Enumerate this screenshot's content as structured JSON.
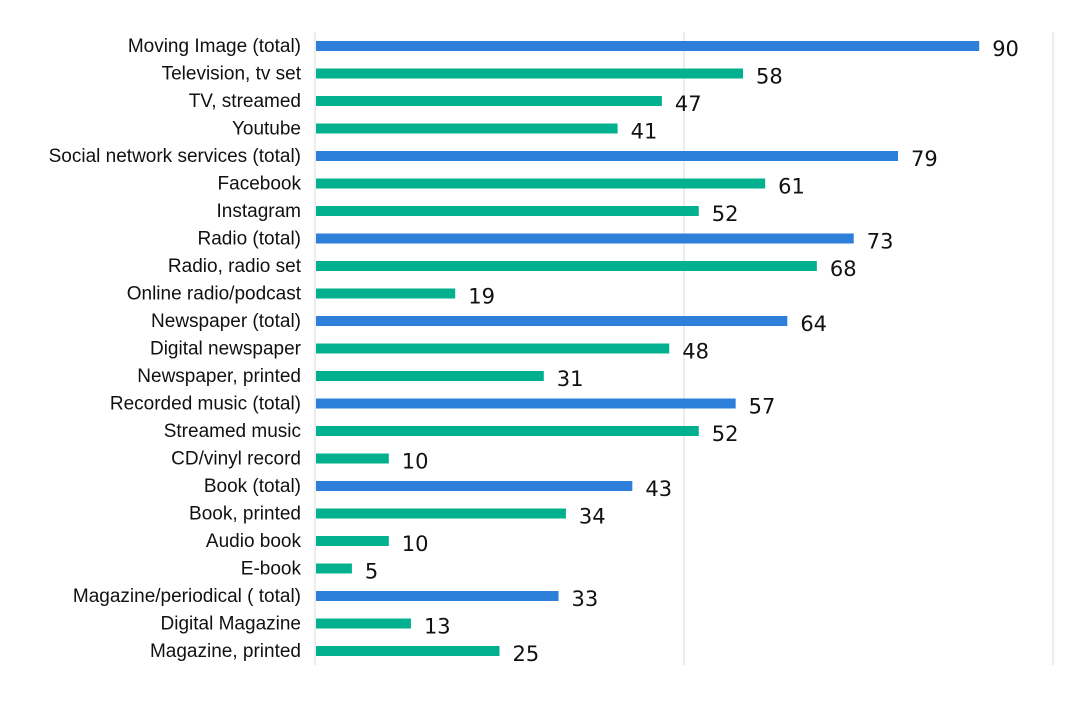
{
  "chart_data": {
    "type": "bar",
    "orientation": "horizontal",
    "title": "",
    "xlabel": "",
    "ylabel": "",
    "xlim": [
      0,
      100
    ],
    "gridlines_at": [
      0,
      50,
      100
    ],
    "grid": true,
    "legend": "none",
    "colors": {
      "total": "#2e7fd9",
      "sub": "#00b08f",
      "grid": "#d9d9d9"
    },
    "categories": [
      "Moving Image (total)",
      "Television, tv set",
      "TV, streamed",
      "Youtube",
      "Social network services (total)",
      "Facebook",
      "Instagram",
      "Radio (total)",
      "Radio, radio set",
      "Online radio/podcast",
      "Newspaper (total)",
      "Digital newspaper",
      "Newspaper, printed",
      "Recorded music (total)",
      "Streamed music",
      "CD/vinyl record",
      "Book (total)",
      "Book, printed",
      "Audio book",
      "E-book",
      "Magazine/periodical ( total)",
      "Digital Magazine",
      "Magazine, printed"
    ],
    "values": [
      90,
      58,
      47,
      41,
      79,
      61,
      52,
      73,
      68,
      19,
      64,
      48,
      31,
      57,
      52,
      10,
      43,
      34,
      10,
      5,
      33,
      13,
      25
    ],
    "is_total": [
      true,
      false,
      false,
      false,
      true,
      false,
      false,
      true,
      false,
      false,
      true,
      false,
      false,
      true,
      false,
      false,
      true,
      false,
      false,
      false,
      true,
      false,
      false
    ]
  }
}
